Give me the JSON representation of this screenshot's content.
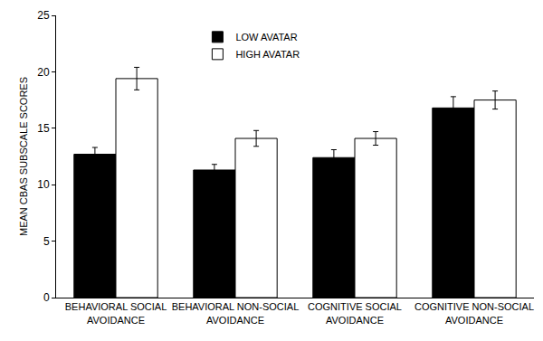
{
  "chart_data": {
    "type": "bar",
    "y_label": "MEAN CBAS SUBSCALE SCORES",
    "categories": [
      "BEHAVIORAL SOCIAL AVOIDANCE",
      "BEHAVIORAL NON-SOCIAL AVOIDANCE",
      "COGNITIVE SOCIAL AVOIDANCE",
      "COGNITIVE NON-SOCIAL AVOIDANCE"
    ],
    "series": [
      {
        "name": "LOW AVATAR",
        "color": "#000000",
        "values": [
          12.7,
          11.3,
          12.4,
          16.8
        ],
        "error": [
          0.6,
          0.5,
          0.7,
          1.0
        ]
      },
      {
        "name": "HIGH AVATAR",
        "color": "#ffffff",
        "values": [
          19.4,
          14.1,
          14.1,
          17.5
        ],
        "error": [
          1.0,
          0.7,
          0.6,
          0.8
        ]
      }
    ],
    "ylim": [
      0,
      25
    ],
    "yticks": [
      0,
      5,
      10,
      15,
      20,
      25
    ],
    "grid": false,
    "legend": "top"
  }
}
